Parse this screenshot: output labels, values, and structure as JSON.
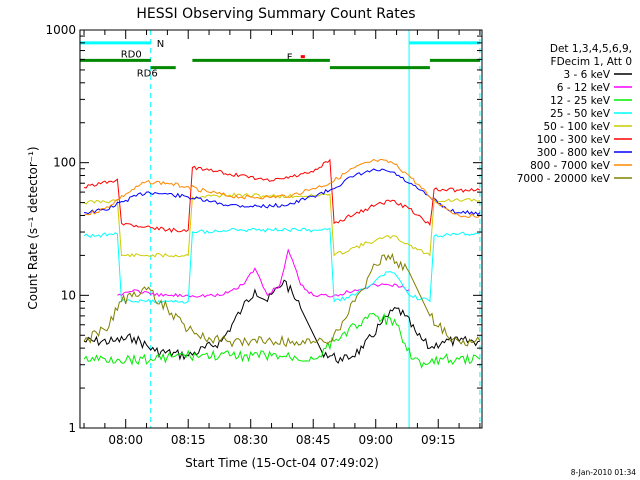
{
  "chart_data": {
    "type": "line",
    "title": "HESSI Observing Summary Count Rates",
    "xlabel": "Start Time (15-Oct-04 07:49:02)",
    "ylabel": "Count Rate (s⁻¹ detector⁻¹)",
    "x_range": [
      "07:49:02",
      "09:25:30"
    ],
    "yscale": "log",
    "ylim": [
      1,
      1000
    ],
    "x_tick_labels": [
      "08:00",
      "08:15",
      "08:30",
      "08:45",
      "09:00",
      "09:15"
    ],
    "y_tick_labels": [
      "1",
      "10",
      "100",
      "1000"
    ],
    "legend": {
      "position": "right",
      "header": [
        "Det 1,3,4,5,6,9,",
        "FDecim 1, Att 0"
      ]
    },
    "timestamp_label": "8-Jan-2010 01:34",
    "series": [
      {
        "name": "3 - 6 keV",
        "color": "#000000",
        "x": [
          "07:50",
          "07:57",
          "08:02",
          "08:07",
          "08:15",
          "08:23",
          "08:28",
          "08:31",
          "08:34",
          "08:38",
          "08:42",
          "08:47",
          "08:52",
          "08:57",
          "09:01",
          "09:05",
          "09:07",
          "09:10",
          "09:13",
          "09:16",
          "09:20",
          "09:25"
        ],
        "y": [
          4.5,
          4.5,
          4.8,
          3.8,
          3.5,
          4.5,
          8,
          11,
          9,
          13,
          8,
          3.8,
          3.2,
          4,
          6,
          8,
          7,
          5,
          4,
          4.5,
          4.5,
          4.5
        ]
      },
      {
        "name": "6 - 12 keV",
        "color": "#ff00ff",
        "x": [
          "07:58",
          "08:02",
          "08:07",
          "08:15",
          "08:23",
          "08:28",
          "08:31",
          "08:34",
          "08:37",
          "08:39",
          "08:42",
          "08:45",
          "08:50",
          "08:55",
          "09:00",
          "09:05",
          "09:08"
        ],
        "y": [
          10,
          11,
          10,
          10,
          10,
          12,
          16,
          10,
          12,
          22,
          12,
          10,
          10,
          11,
          12,
          12,
          11
        ]
      },
      {
        "name": "12 - 25 keV",
        "color": "#00ee00",
        "x": [
          "07:50",
          "07:58",
          "08:06",
          "08:12",
          "08:18",
          "08:25",
          "08:35",
          "08:45",
          "08:50",
          "08:55",
          "09:00",
          "09:05",
          "09:09",
          "09:12",
          "09:16",
          "09:20",
          "09:25"
        ],
        "y": [
          3.3,
          3.3,
          3.3,
          3.5,
          3.5,
          3.5,
          3.5,
          3.3,
          4.5,
          6,
          7,
          6,
          3.3,
          3,
          3.3,
          3.3,
          3.3
        ]
      },
      {
        "name": "25 - 50 keV",
        "color": "#00ffff",
        "x": [
          "07:50",
          "07:58",
          "07:59",
          "08:05",
          "08:10",
          "08:15",
          "08:16",
          "08:25",
          "08:35",
          "08:45",
          "08:49",
          "08:50",
          "08:55",
          "09:00",
          "09:03",
          "09:05",
          "09:08",
          "09:13",
          "09:14",
          "09:20",
          "09:25"
        ],
        "y": [
          28,
          29,
          9,
          9,
          9,
          9,
          30,
          31,
          31,
          31,
          32,
          9,
          10,
          13,
          15,
          14,
          10,
          9,
          28,
          29,
          29
        ]
      },
      {
        "name": "50 - 100 keV",
        "color": "#cccc00",
        "x": [
          "07:50",
          "07:58",
          "07:59",
          "08:05",
          "08:10",
          "08:15",
          "08:16",
          "08:25",
          "08:35",
          "08:45",
          "08:49",
          "08:50",
          "08:55",
          "09:00",
          "09:04",
          "09:08",
          "09:13",
          "09:14",
          "09:20",
          "09:25"
        ],
        "y": [
          50,
          52,
          20,
          20,
          20,
          20,
          55,
          57,
          56,
          56,
          58,
          20,
          23,
          26,
          28,
          24,
          20,
          52,
          52,
          52
        ]
      },
      {
        "name": "100 - 300 keV",
        "color": "#ff0000",
        "x": [
          "07:50",
          "07:58",
          "07:59",
          "08:05",
          "08:10",
          "08:15",
          "08:16",
          "08:25",
          "08:35",
          "08:45",
          "08:49",
          "08:50",
          "08:55",
          "09:00",
          "09:04",
          "09:08",
          "09:13",
          "09:14",
          "09:20",
          "09:25"
        ],
        "y": [
          65,
          75,
          35,
          33,
          31,
          31,
          92,
          82,
          73,
          85,
          105,
          35,
          41,
          48,
          52,
          45,
          34,
          63,
          62,
          62
        ]
      },
      {
        "name": "300 - 800 keV",
        "color": "#0000ff",
        "x": [
          "07:50",
          "07:55",
          "08:00",
          "08:05",
          "08:10",
          "08:15",
          "08:20",
          "08:25",
          "08:30",
          "08:35",
          "08:40",
          "08:45",
          "08:49",
          "08:55",
          "09:00",
          "09:04",
          "09:08",
          "09:13",
          "09:17",
          "09:20",
          "09:25"
        ],
        "y": [
          42,
          44,
          52,
          60,
          58,
          55,
          51,
          48,
          47,
          47,
          49,
          56,
          62,
          80,
          88,
          85,
          70,
          55,
          45,
          42,
          42
        ]
      },
      {
        "name": "800 - 7000 keV",
        "color": "#ff8800",
        "x": [
          "07:50",
          "07:55",
          "08:00",
          "08:05",
          "08:10",
          "08:15",
          "08:20",
          "08:25",
          "08:30",
          "08:35",
          "08:40",
          "08:45",
          "08:49",
          "08:55",
          "09:00",
          "09:04",
          "09:08",
          "09:13",
          "09:17",
          "09:20",
          "09:25"
        ],
        "y": [
          40,
          45,
          58,
          72,
          70,
          66,
          60,
          56,
          55,
          55,
          57,
          64,
          70,
          92,
          104,
          100,
          80,
          55,
          45,
          40,
          40
        ]
      },
      {
        "name": "7000 - 20000 keV",
        "color": "#808000",
        "x": [
          "07:50",
          "07:55",
          "07:59",
          "08:05",
          "08:10",
          "08:15",
          "08:20",
          "08:25",
          "08:30",
          "08:35",
          "08:40",
          "08:45",
          "08:49",
          "08:55",
          "09:00",
          "09:03",
          "09:08",
          "09:13",
          "09:17",
          "09:20",
          "09:25"
        ],
        "y": [
          4.5,
          5.5,
          9,
          11,
          8,
          5.5,
          4.8,
          4.5,
          4.5,
          4.5,
          4.5,
          4.5,
          4.5,
          9,
          17,
          20,
          15,
          7,
          5,
          4.5,
          4.5
        ]
      }
    ],
    "annotations": [
      {
        "text": "N",
        "color": "#00ffff",
        "segments": [
          [
            "07:49",
            "08:06"
          ],
          [
            "09:08",
            "09:25"
          ]
        ],
        "y": 800
      },
      {
        "text": "F",
        "color": "#ff0000",
        "segments": [
          [
            "08:42",
            "08:43"
          ]
        ],
        "y": 630
      },
      {
        "text": "RD0",
        "color": "#008800",
        "segments": [
          [
            "07:49",
            "08:06"
          ],
          [
            "08:16",
            "08:49"
          ],
          [
            "09:13",
            "09:25"
          ]
        ],
        "y": 590
      },
      {
        "text": "RD6",
        "color": "#008800",
        "segments": [
          [
            "08:06",
            "08:12"
          ],
          [
            "08:49",
            "09:13"
          ]
        ],
        "y": 520
      }
    ],
    "vertical_markers": [
      {
        "time": "07:49",
        "color": "#00ffff",
        "style": "solid"
      },
      {
        "time": "08:06",
        "color": "#00ffff",
        "style": "dashed"
      },
      {
        "time": "09:08",
        "color": "#00ffff",
        "style": "solid"
      },
      {
        "time": "09:25",
        "color": "#00ffff",
        "style": "dashed"
      }
    ]
  }
}
